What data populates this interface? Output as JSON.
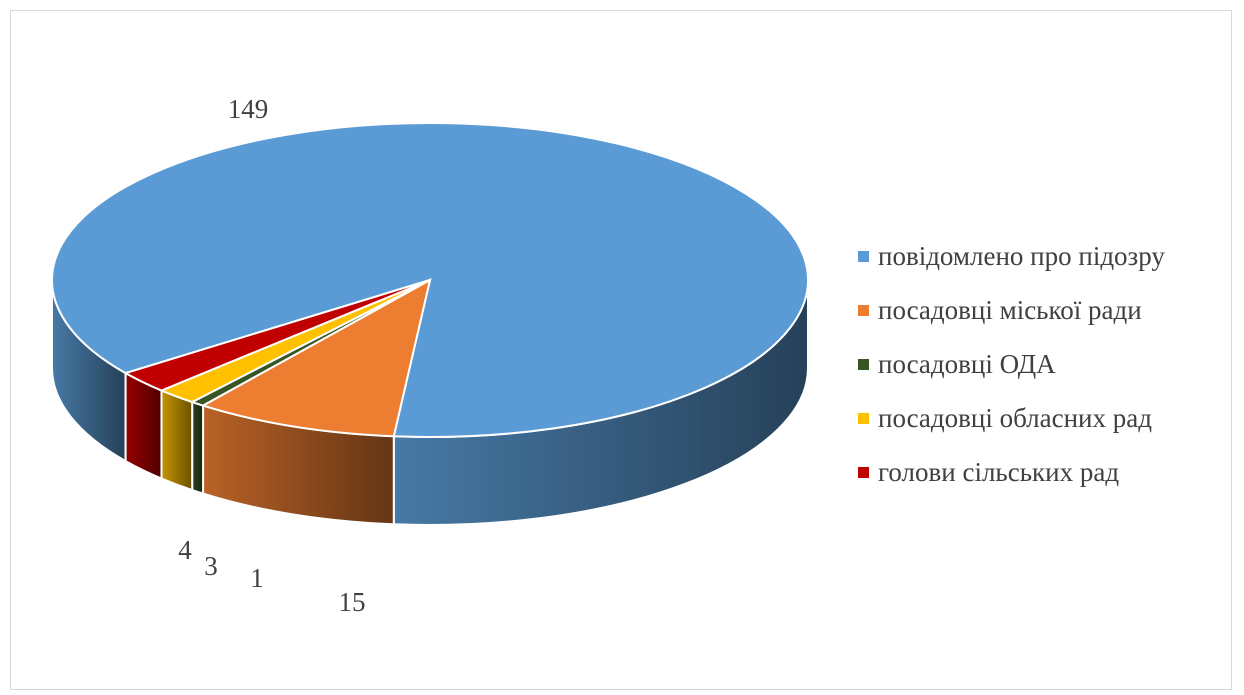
{
  "chart_data": {
    "type": "pie",
    "style": "3d",
    "legend_position": "right",
    "categories": [
      "повідомлено про підозру",
      "посадовці міської ради",
      "посадовці ОДА",
      "посадовці обласних рад",
      "голови сільських  рад"
    ],
    "values": [
      149,
      15,
      1,
      3,
      4
    ],
    "colors": [
      "#5B9BD5",
      "#ED7D31",
      "#375623",
      "#FFC000",
      "#C00000"
    ],
    "data_labels": [
      "149",
      "15",
      "1",
      "3",
      "4"
    ]
  }
}
